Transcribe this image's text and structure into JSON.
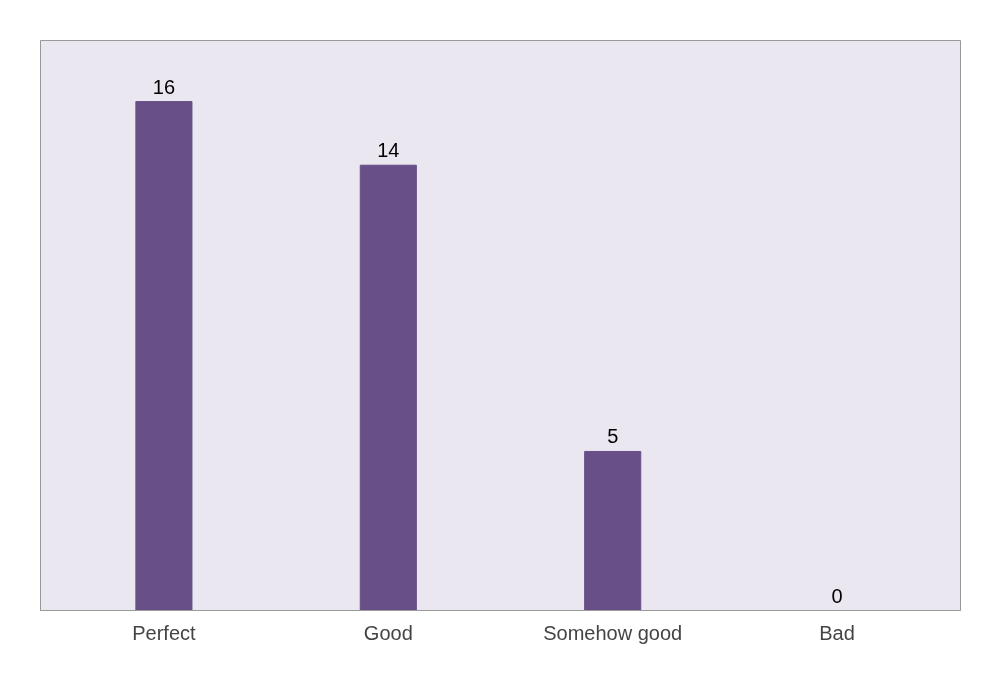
{
  "chart_data": {
    "type": "bar",
    "categories": [
      "Perfect",
      "Good",
      "Somehow good",
      "Bad"
    ],
    "values": [
      16,
      14,
      5,
      0
    ],
    "color": "#684f87",
    "data_labels": true,
    "grid": false
  }
}
